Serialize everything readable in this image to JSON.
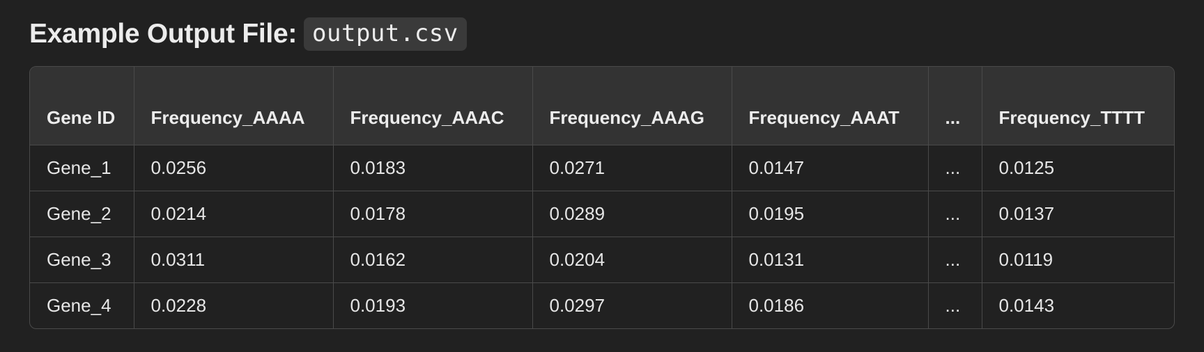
{
  "heading": {
    "label": "Example Output File:",
    "filename": "output.csv"
  },
  "table": {
    "headers": [
      "Gene ID",
      "Frequency_AAAA",
      "Frequency_AAAC",
      "Frequency_AAAG",
      "Frequency_AAAT",
      "...",
      "Frequency_TTTT"
    ],
    "rows": [
      [
        "Gene_1",
        "0.0256",
        "0.0183",
        "0.0271",
        "0.0147",
        "...",
        "0.0125"
      ],
      [
        "Gene_2",
        "0.0214",
        "0.0178",
        "0.0289",
        "0.0195",
        "...",
        "0.0137"
      ],
      [
        "Gene_3",
        "0.0311",
        "0.0162",
        "0.0204",
        "0.0131",
        "...",
        "0.0119"
      ],
      [
        "Gene_4",
        "0.0228",
        "0.0193",
        "0.0297",
        "0.0186",
        "...",
        "0.0143"
      ]
    ]
  },
  "colors": {
    "background": "#212121",
    "header_background": "#333333",
    "border": "#4a4a4a",
    "code_background": "#3a3a3a",
    "text": "#ececec"
  }
}
